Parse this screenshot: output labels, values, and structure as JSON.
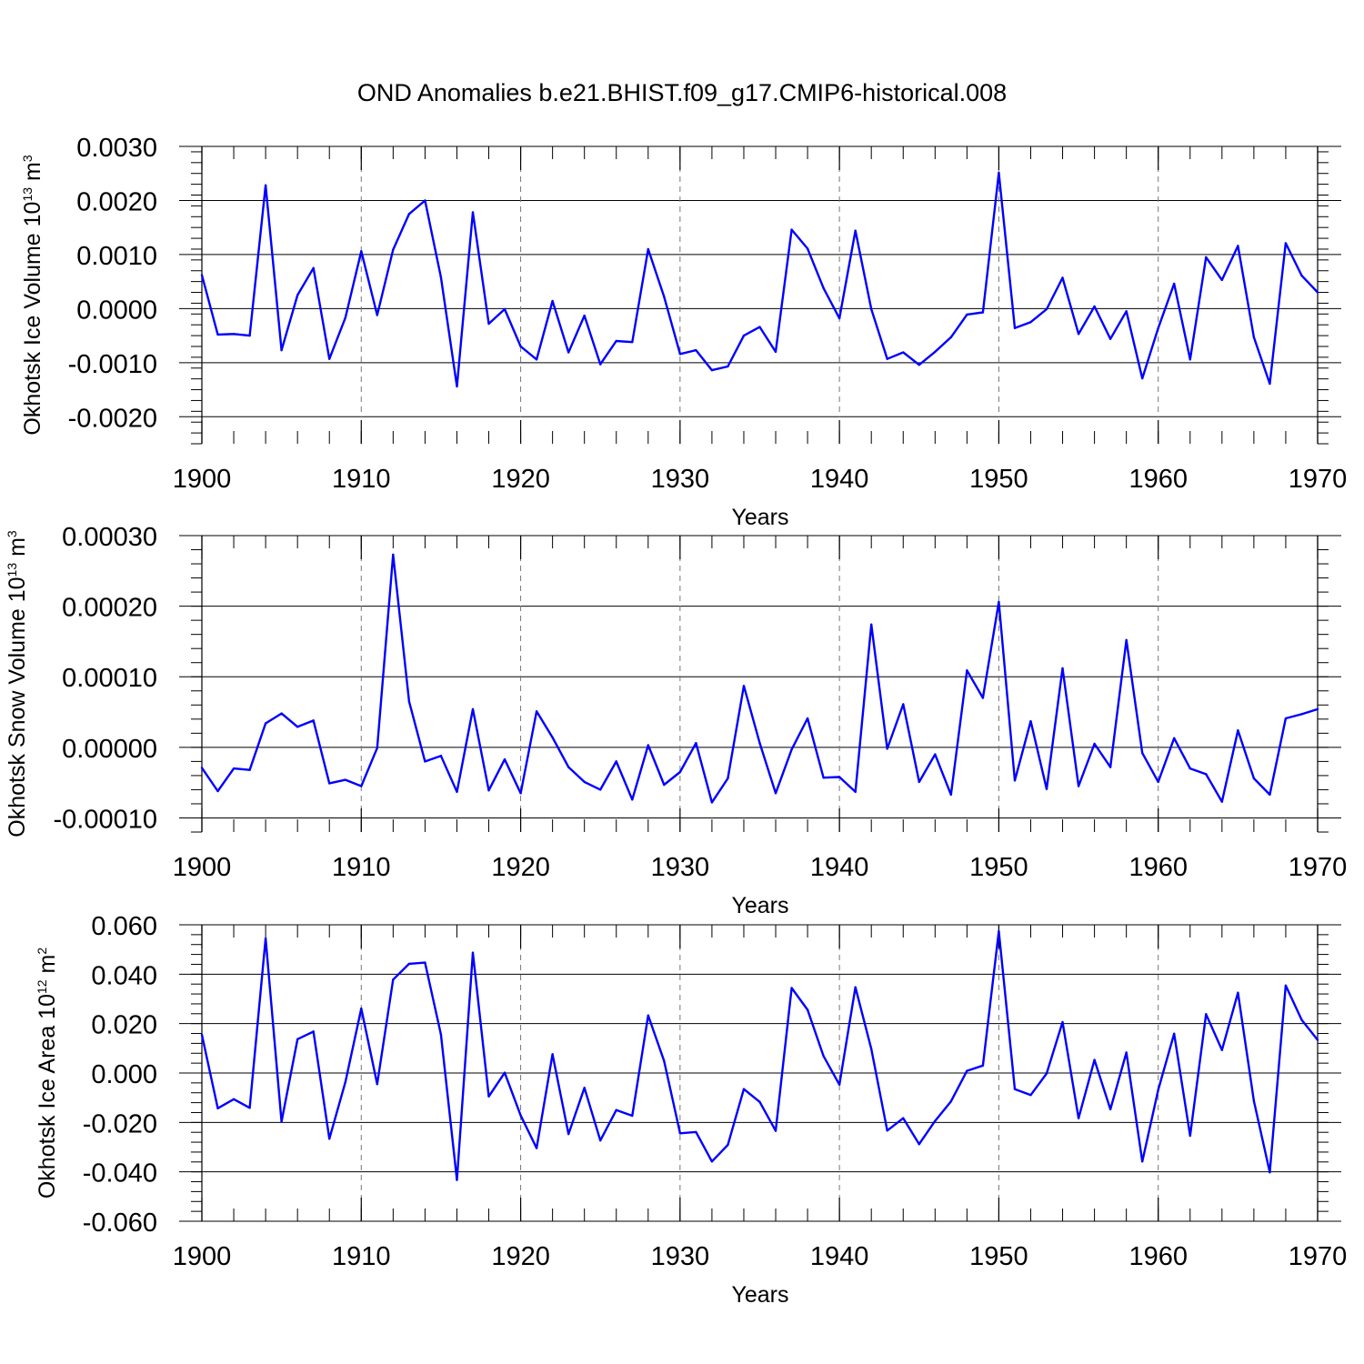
{
  "chart_data": [
    {
      "type": "line",
      "title": "OND Anomalies b.e21.BHIST.f09_g17.CMIP6-historical.008",
      "xlabel": "Years",
      "ylabel": "Okhotsk Ice Volume",
      "ylabel_unit": "10",
      "ylabel_unit_exp": "13",
      "ylabel_unit_rest": " m",
      "ylabel_unit_rest_exp": "3",
      "xlim": [
        1900,
        1970
      ],
      "ylim": [
        -0.0025,
        0.003
      ],
      "xticks": [
        1900,
        1910,
        1920,
        1930,
        1940,
        1950,
        1960,
        1970
      ],
      "xtick_labels": [
        "1900",
        "1910",
        "1920",
        "1930",
        "1940",
        "1950",
        "1960",
        "1970"
      ],
      "yticks": [
        -0.002,
        -0.001,
        0.0,
        0.001,
        0.002,
        0.003
      ],
      "ytick_labels": [
        "-0.0020",
        "-0.0010",
        "0.0000",
        "0.0010",
        "0.0020",
        "0.0030"
      ],
      "line_color": "#0000ff",
      "x": [
        1900,
        1901,
        1902,
        1903,
        1904,
        1905,
        1906,
        1907,
        1908,
        1909,
        1910,
        1911,
        1912,
        1913,
        1914,
        1915,
        1916,
        1917,
        1918,
        1919,
        1920,
        1921,
        1922,
        1923,
        1924,
        1925,
        1926,
        1927,
        1928,
        1929,
        1930,
        1931,
        1932,
        1933,
        1934,
        1935,
        1936,
        1937,
        1938,
        1939,
        1940,
        1941,
        1942,
        1943,
        1944,
        1945,
        1946,
        1947,
        1948,
        1949,
        1950,
        1951,
        1952,
        1953,
        1954,
        1955,
        1956,
        1957,
        1958,
        1959,
        1960,
        1961,
        1962,
        1963,
        1964,
        1965,
        1966,
        1967,
        1968,
        1969,
        1970
      ],
      "values": [
        0.00062,
        -0.00048,
        -0.00047,
        -0.0005,
        0.00228,
        -0.00077,
        0.00025,
        0.00075,
        -0.00093,
        -0.00017,
        0.00106,
        -0.00012,
        0.00109,
        0.00175,
        0.002,
        0.00058,
        -0.00144,
        0.00178,
        -0.00028,
        -1e-05,
        -0.0007,
        -0.00094,
        0.00014,
        -0.00081,
        -0.00013,
        -0.00103,
        -0.0006,
        -0.00062,
        0.0011,
        0.00022,
        -0.00084,
        -0.00077,
        -0.00114,
        -0.00107,
        -0.0005,
        -0.00034,
        -0.0008,
        0.00146,
        0.00111,
        0.00038,
        -0.00018,
        0.00144,
        -1e-05,
        -0.00093,
        -0.00081,
        -0.00104,
        -0.0008,
        -0.00053,
        -0.00011,
        -7e-05,
        0.00251,
        -0.00036,
        -0.00025,
        -1e-05,
        0.00057,
        -0.00047,
        4e-05,
        -0.00056,
        -5e-05,
        -0.00129,
        -0.00036,
        0.00046,
        -0.00094,
        0.00095,
        0.00053,
        0.00116,
        -0.00053,
        -0.00139,
        0.00121,
        0.00061,
        0.0003
      ]
    },
    {
      "type": "line",
      "xlabel": "Years",
      "ylabel": "Okhotsk Snow Volume",
      "ylabel_unit": "10",
      "ylabel_unit_exp": "13",
      "ylabel_unit_rest": " m",
      "ylabel_unit_rest_exp": "3",
      "xlim": [
        1900,
        1970
      ],
      "ylim": [
        -0.00012,
        0.0003
      ],
      "xticks": [
        1900,
        1910,
        1920,
        1930,
        1940,
        1950,
        1960,
        1970
      ],
      "xtick_labels": [
        "1900",
        "1910",
        "1920",
        "1930",
        "1940",
        "1950",
        "1960",
        "1970"
      ],
      "yticks": [
        -0.0001,
        0.0,
        0.0001,
        0.0002,
        0.0003
      ],
      "ytick_labels": [
        "-0.00010",
        "0.00000",
        "0.00010",
        "0.00020",
        "0.00030"
      ],
      "line_color": "#0000ff",
      "x": [
        1900,
        1901,
        1902,
        1903,
        1904,
        1905,
        1906,
        1907,
        1908,
        1909,
        1910,
        1911,
        1912,
        1913,
        1914,
        1915,
        1916,
        1917,
        1918,
        1919,
        1920,
        1921,
        1922,
        1923,
        1924,
        1925,
        1926,
        1927,
        1928,
        1929,
        1930,
        1931,
        1932,
        1933,
        1934,
        1935,
        1936,
        1937,
        1938,
        1939,
        1940,
        1941,
        1942,
        1943,
        1944,
        1945,
        1946,
        1947,
        1948,
        1949,
        1950,
        1951,
        1952,
        1953,
        1954,
        1955,
        1956,
        1957,
        1958,
        1959,
        1960,
        1961,
        1962,
        1963,
        1964,
        1965,
        1966,
        1967,
        1968,
        1969,
        1970
      ],
      "values": [
        -2.9e-05,
        -6.2e-05,
        -3e-05,
        -3.2e-05,
        3.4e-05,
        4.8e-05,
        2.9e-05,
        3.8e-05,
        -5.1e-05,
        -4.6e-05,
        -5.5e-05,
        -1e-06,
        0.000273,
        6.5e-05,
        -2e-05,
        -1.2e-05,
        -6.3e-05,
        5.4e-05,
        -6.1e-05,
        -1.7e-05,
        -6.5e-05,
        5.1e-05,
        1.4e-05,
        -2.8e-05,
        -4.9e-05,
        -6e-05,
        -2e-05,
        -7.4e-05,
        3e-06,
        -5.3e-05,
        -3.5e-05,
        6e-06,
        -7.8e-05,
        -4.4e-05,
        8.7e-05,
        6e-06,
        -6.5e-05,
        -3e-06,
        4.1e-05,
        -4.3e-05,
        -4.2e-05,
        -6.3e-05,
        0.000174,
        -2e-06,
        6.1e-05,
        -4.9e-05,
        -1e-05,
        -6.7e-05,
        0.000109,
        7e-05,
        0.000206,
        -4.7e-05,
        3.7e-05,
        -5.9e-05,
        0.000112,
        -5.5e-05,
        5e-06,
        -2.8e-05,
        0.000152,
        -8e-06,
        -4.9e-05,
        1.3e-05,
        -3e-05,
        -3.8e-05,
        -7.7e-05,
        2.4e-05,
        -4.4e-05,
        -6.7e-05,
        4.1e-05,
        4.7e-05,
        5.4e-05
      ]
    },
    {
      "type": "line",
      "xlabel": "Years",
      "ylabel": "Okhotsk Ice Area",
      "ylabel_unit": "10",
      "ylabel_unit_exp": "12",
      "ylabel_unit_rest": " m",
      "ylabel_unit_rest_exp": "2",
      "xlim": [
        1900,
        1970
      ],
      "ylim": [
        -0.06,
        0.06
      ],
      "xticks": [
        1900,
        1910,
        1920,
        1930,
        1940,
        1950,
        1960,
        1970
      ],
      "xtick_labels": [
        "1900",
        "1910",
        "1920",
        "1930",
        "1940",
        "1950",
        "1960",
        "1970"
      ],
      "yticks": [
        -0.06,
        -0.04,
        -0.02,
        0.0,
        0.02,
        0.04,
        0.06
      ],
      "ytick_labels": [
        "-0.060",
        "-0.040",
        "-0.020",
        "0.000",
        "0.020",
        "0.040",
        "0.060"
      ],
      "line_color": "#0000ff",
      "x": [
        1900,
        1901,
        1902,
        1903,
        1904,
        1905,
        1906,
        1907,
        1908,
        1909,
        1910,
        1911,
        1912,
        1913,
        1914,
        1915,
        1916,
        1917,
        1918,
        1919,
        1920,
        1921,
        1922,
        1923,
        1924,
        1925,
        1926,
        1927,
        1928,
        1929,
        1930,
        1931,
        1932,
        1933,
        1934,
        1935,
        1936,
        1937,
        1938,
        1939,
        1940,
        1941,
        1942,
        1943,
        1944,
        1945,
        1946,
        1947,
        1948,
        1949,
        1950,
        1951,
        1952,
        1953,
        1954,
        1955,
        1956,
        1957,
        1958,
        1959,
        1960,
        1961,
        1962,
        1963,
        1964,
        1965,
        1966,
        1967,
        1968,
        1969,
        1970
      ],
      "values": [
        0.0155,
        -0.0143,
        -0.0106,
        -0.0141,
        0.0545,
        -0.0197,
        0.0137,
        0.0168,
        -0.0266,
        -0.0037,
        0.0261,
        -0.0045,
        0.0378,
        0.0442,
        0.0447,
        0.0156,
        -0.0433,
        0.0487,
        -0.0095,
        0.0001,
        -0.0172,
        -0.0304,
        0.0076,
        -0.0247,
        -0.006,
        -0.0273,
        -0.015,
        -0.0173,
        0.0233,
        0.0049,
        -0.0244,
        -0.0239,
        -0.0358,
        -0.0291,
        -0.0065,
        -0.0117,
        -0.0234,
        0.0344,
        0.0256,
        0.0069,
        -0.0047,
        0.0347,
        0.0097,
        -0.0233,
        -0.0183,
        -0.0288,
        -0.0194,
        -0.0115,
        0.0009,
        0.003,
        0.0574,
        -0.0065,
        -0.0089,
        -0.0002,
        0.0206,
        -0.0183,
        0.0053,
        -0.0147,
        0.0083,
        -0.0358,
        -0.0068,
        0.0159,
        -0.0254,
        0.0238,
        0.0093,
        0.0325,
        -0.0113,
        -0.0402,
        0.0354,
        0.0215,
        0.0134
      ]
    }
  ]
}
